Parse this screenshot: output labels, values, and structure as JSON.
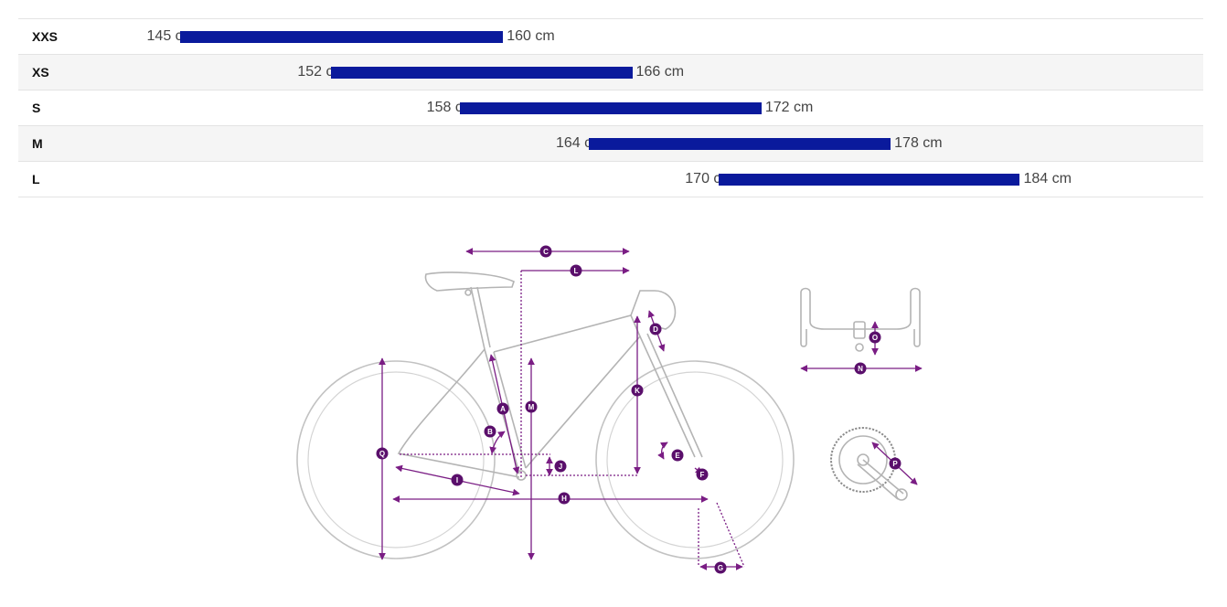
{
  "size_table": {
    "unit": "cm",
    "bar_color": "#0a1a9c",
    "scale": {
      "min": 140,
      "max": 190
    },
    "rows": [
      {
        "size": "XXS",
        "min": 145,
        "max": 160,
        "min_label": "145 cm",
        "max_label": "160 cm"
      },
      {
        "size": "XS",
        "min": 152,
        "max": 166,
        "min_label": "152 cm",
        "max_label": "166 cm"
      },
      {
        "size": "S",
        "min": 158,
        "max": 172,
        "min_label": "158 cm",
        "max_label": "172 cm"
      },
      {
        "size": "M",
        "min": 164,
        "max": 178,
        "min_label": "164 cm",
        "max_label": "178 cm"
      },
      {
        "size": "L",
        "min": 170,
        "max": 184,
        "min_label": "170 cm",
        "max_label": "184 cm"
      }
    ]
  },
  "geometry_diagram": {
    "line_color": "#7a1d84",
    "marker_color": "#5a0f6b",
    "markers": {
      "A": "A",
      "B": "B",
      "C": "C",
      "D": "D",
      "E": "E",
      "F": "F",
      "G": "G",
      "H": "H",
      "I": "I",
      "J": "J",
      "K": "K",
      "L": "L",
      "M": "M",
      "N": "N",
      "O": "O",
      "P": "P",
      "Q": "Q"
    }
  }
}
